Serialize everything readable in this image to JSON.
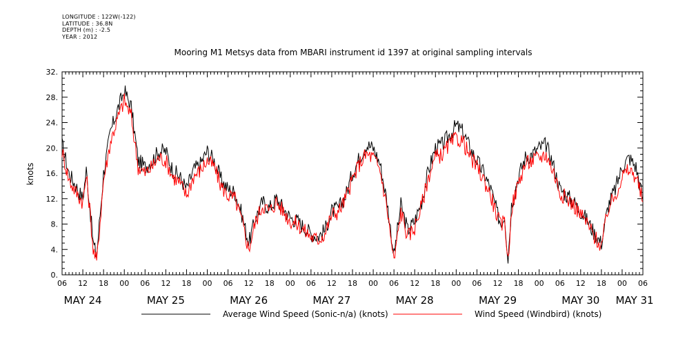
{
  "header": {
    "lines": [
      "LONGITUDE : 122W(-122)",
      "LATITUDE : 36.8N",
      "DEPTH (m) : -2.5",
      "YEAR : 2012"
    ]
  },
  "chart_data": {
    "type": "line",
    "title": "Mooring M1 Metsys data from MBARI instrument id 1397 at original sampling intervals",
    "xlabel": "",
    "ylabel": "knots",
    "x_range_hours_from": "2012-05-24 06:00",
    "xlim": [
      "2012-05-24 06:00",
      "2012-05-31 06:00"
    ],
    "ylim": [
      0,
      32
    ],
    "y_ticks": [
      "0.",
      "4.",
      "8.",
      "12.",
      "16.",
      "20.",
      "24.",
      "28.",
      "32."
    ],
    "hour_tick_labels": [
      "06",
      "12",
      "18",
      "00"
    ],
    "day_labels": [
      "MAY 24",
      "MAY 25",
      "MAY 26",
      "MAY 27",
      "MAY 28",
      "MAY 29",
      "MAY 30",
      "MAY 31"
    ],
    "grid": false,
    "legend_position": "bottom",
    "x": [
      "2012-05-24 06:00",
      "2012-05-24 08:00",
      "2012-05-24 10:00",
      "2012-05-24 12:00",
      "2012-05-24 13:00",
      "2012-05-24 14:00",
      "2012-05-24 15:00",
      "2012-05-24 16:00",
      "2012-05-24 18:00",
      "2012-05-24 20:00",
      "2012-05-24 22:00",
      "2012-05-25 00:00",
      "2012-05-25 02:00",
      "2012-05-25 04:00",
      "2012-05-25 06:00",
      "2012-05-25 08:00",
      "2012-05-25 10:00",
      "2012-05-25 12:00",
      "2012-05-25 14:00",
      "2012-05-25 16:00",
      "2012-05-25 18:00",
      "2012-05-25 20:00",
      "2012-05-25 22:00",
      "2012-05-26 00:00",
      "2012-05-26 02:00",
      "2012-05-26 04:00",
      "2012-05-26 06:00",
      "2012-05-26 08:00",
      "2012-05-26 10:00",
      "2012-05-26 12:00",
      "2012-05-26 14:00",
      "2012-05-26 16:00",
      "2012-05-26 18:00",
      "2012-05-26 20:00",
      "2012-05-26 22:00",
      "2012-05-27 00:00",
      "2012-05-27 02:00",
      "2012-05-27 04:00",
      "2012-05-27 06:00",
      "2012-05-27 08:00",
      "2012-05-27 10:00",
      "2012-05-27 12:00",
      "2012-05-27 14:00",
      "2012-05-27 16:00",
      "2012-05-27 18:00",
      "2012-05-27 20:00",
      "2012-05-27 22:00",
      "2012-05-28 00:00",
      "2012-05-28 02:00",
      "2012-05-28 04:00",
      "2012-05-28 06:00",
      "2012-05-28 08:00",
      "2012-05-28 10:00",
      "2012-05-28 12:00",
      "2012-05-28 14:00",
      "2012-05-28 16:00",
      "2012-05-28 18:00",
      "2012-05-28 20:00",
      "2012-05-28 22:00",
      "2012-05-29 00:00",
      "2012-05-29 02:00",
      "2012-05-29 04:00",
      "2012-05-29 06:00",
      "2012-05-29 08:00",
      "2012-05-29 10:00",
      "2012-05-29 12:00",
      "2012-05-29 13:00",
      "2012-05-29 14:00",
      "2012-05-29 15:00",
      "2012-05-29 16:00",
      "2012-05-29 18:00",
      "2012-05-29 20:00",
      "2012-05-29 22:00",
      "2012-05-30 00:00",
      "2012-05-30 02:00",
      "2012-05-30 04:00",
      "2012-05-30 06:00",
      "2012-05-30 08:00",
      "2012-05-30 10:00",
      "2012-05-30 12:00",
      "2012-05-30 14:00",
      "2012-05-30 16:00",
      "2012-05-30 18:00",
      "2012-05-30 20:00",
      "2012-05-30 22:00",
      "2012-05-31 00:00",
      "2012-05-31 02:00",
      "2012-05-31 04:00",
      "2012-05-31 06:00"
    ],
    "series": [
      {
        "name": "Average Wind Speed (Sonic-n/a) (knots)",
        "color": "#000000",
        "values": [
          20.5,
          16.0,
          14.0,
          12.0,
          16.5,
          11.0,
          5.0,
          3.0,
          16.0,
          22.5,
          26.0,
          29.0,
          26.5,
          18.0,
          17.0,
          18.0,
          19.5,
          19.5,
          16.5,
          15.5,
          13.5,
          16.5,
          17.5,
          19.5,
          18.0,
          15.0,
          13.5,
          13.0,
          9.5,
          5.0,
          9.0,
          11.5,
          10.5,
          12.0,
          10.5,
          9.0,
          8.5,
          7.5,
          6.5,
          6.0,
          7.0,
          10.0,
          10.5,
          12.5,
          16.0,
          18.5,
          20.5,
          20.0,
          17.5,
          11.5,
          3.0,
          11.0,
          7.0,
          8.5,
          11.5,
          16.5,
          20.0,
          20.5,
          22.0,
          23.5,
          22.5,
          20.0,
          18.0,
          16.0,
          13.5,
          9.5,
          8.0,
          9.5,
          2.5,
          11.0,
          15.5,
          18.5,
          19.0,
          20.0,
          20.5,
          17.5,
          13.5,
          12.5,
          11.5,
          10.0,
          8.5,
          6.5,
          5.0,
          11.0,
          13.5,
          17.0,
          18.5,
          17.0,
          12.0
        ]
      },
      {
        "name": "Wind Speed (Windbird) (knots)",
        "color": "#ff0000",
        "values": [
          19.5,
          15.0,
          13.0,
          11.5,
          15.5,
          10.5,
          4.0,
          2.0,
          15.0,
          21.0,
          24.5,
          27.5,
          25.0,
          17.0,
          16.0,
          17.0,
          18.5,
          18.0,
          15.5,
          14.5,
          12.5,
          15.5,
          16.5,
          18.0,
          17.0,
          14.0,
          12.5,
          12.0,
          8.5,
          4.0,
          8.5,
          11.0,
          10.0,
          11.5,
          10.0,
          8.5,
          8.0,
          7.0,
          6.0,
          5.5,
          6.5,
          9.5,
          10.0,
          12.0,
          15.0,
          17.5,
          19.0,
          18.5,
          16.5,
          10.5,
          2.0,
          10.0,
          6.0,
          7.5,
          11.0,
          15.5,
          18.5,
          19.0,
          20.5,
          21.5,
          21.0,
          18.5,
          17.0,
          15.0,
          12.5,
          9.0,
          7.5,
          9.0,
          2.0,
          10.5,
          14.5,
          17.5,
          18.0,
          18.5,
          19.0,
          16.5,
          13.0,
          12.0,
          11.0,
          9.5,
          8.0,
          6.0,
          4.5,
          10.5,
          12.5,
          15.5,
          16.5,
          15.5,
          11.5
        ]
      }
    ]
  }
}
